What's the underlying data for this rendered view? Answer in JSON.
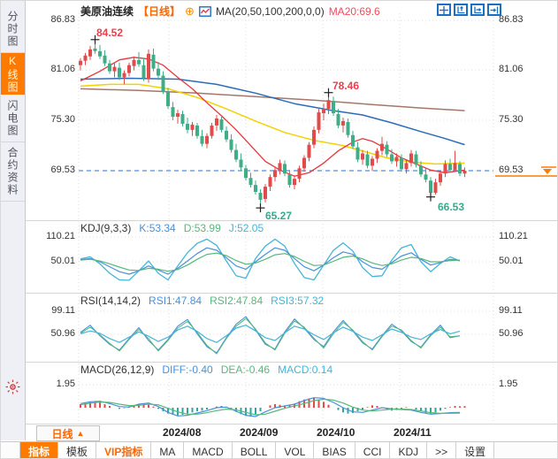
{
  "sidebar": {
    "tabs": [
      {
        "label": "分时图",
        "active": false
      },
      {
        "label": "K线图",
        "active": true
      },
      {
        "label": "闪电图",
        "active": false
      },
      {
        "label": "合约资料",
        "active": false
      }
    ]
  },
  "header": {
    "title": "美原油连续",
    "period": "【日线】",
    "ma_settings": "MA(20,50,100,200,0,0)",
    "ma20": "MA20:69.6"
  },
  "axis": {
    "main_ticks": [
      "86.83",
      "81.06",
      "75.30",
      "69.53"
    ],
    "last_price": "69.53"
  },
  "annotations": {
    "high1": "84.52",
    "low1": "65.27",
    "high2": "78.46",
    "low2": "66.53"
  },
  "kdj": {
    "name": "KDJ(9,3,3)",
    "k": "K:53.34",
    "d": "D:53.99",
    "j": "J:52.05",
    "tick_top": "110.21",
    "tick_mid": "50.01"
  },
  "rsi": {
    "name": "RSI(14,14,2)",
    "r1": "RSI1:47.84",
    "r2": "RSI2:47.84",
    "r3": "RSI3:57.32",
    "tick_top": "99.11",
    "tick_mid": "50.96"
  },
  "macd": {
    "name": "MACD(26,12,9)",
    "diff": "DIFF:-0.40",
    "dea": "DEA:-0.46",
    "macd": "MACD:0.14",
    "tick_top": "1.95"
  },
  "xaxis": {
    "period": "日线",
    "period_arrow": "▲",
    "dates": [
      "2024/08",
      "2024/09",
      "2024/10",
      "2024/11"
    ]
  },
  "tabbar": {
    "tabs": [
      {
        "label": "指标",
        "active": true
      },
      {
        "label": "模板"
      },
      {
        "label": "VIP指标",
        "vip": true
      },
      {
        "label": "MA"
      },
      {
        "label": "MACD"
      },
      {
        "label": "BOLL"
      },
      {
        "label": "VOL"
      },
      {
        "label": "BIAS"
      },
      {
        "label": "CCI"
      },
      {
        "label": "KDJ"
      },
      {
        "label": ">>"
      },
      {
        "label": "设置"
      }
    ]
  },
  "colors": {
    "accent_orange": "#ff7a00",
    "up_red": "#e24b4b",
    "down_green": "#3fae87",
    "ma20": "#e8353e",
    "ma50": "#f2d200",
    "ma100": "#2b6cb8",
    "ma200": "#a5766b",
    "k_blue": "#4a90d9",
    "d_green": "#56b87c",
    "j_cyan": "#45b5d8",
    "dashed_blue": "#4f8fd9",
    "hist_neg": "#2fa6a0",
    "grid": "#dcdcdc"
  },
  "chart_data": {
    "type": "candlestick",
    "symbol": "美原油连续",
    "period": "日线",
    "x_axis_months": [
      "2024/08",
      "2024/09",
      "2024/10",
      "2024/11"
    ],
    "price_ticks": [
      86.83,
      81.06,
      75.3,
      69.53
    ],
    "last_price": 69.53,
    "marked_points": {
      "high1": {
        "index": 3,
        "price": 84.52
      },
      "low1": {
        "index": 37,
        "price": 65.27
      },
      "high2": {
        "index": 51,
        "price": 78.46
      },
      "low2": {
        "index": 72,
        "price": 66.53
      }
    },
    "candles": [
      [
        81.6,
        82.4,
        81.0,
        82.1
      ],
      [
        82.1,
        83.0,
        81.6,
        82.7
      ],
      [
        82.6,
        83.8,
        82.2,
        83.4
      ],
      [
        83.5,
        84.52,
        82.9,
        83.2
      ],
      [
        83.2,
        83.9,
        82.3,
        82.6
      ],
      [
        82.7,
        83.3,
        81.5,
        81.8
      ],
      [
        81.8,
        82.2,
        80.6,
        80.9
      ],
      [
        80.9,
        81.8,
        80.2,
        81.4
      ],
      [
        81.3,
        81.9,
        79.9,
        80.2
      ],
      [
        80.2,
        81.0,
        79.4,
        80.7
      ],
      [
        80.7,
        81.9,
        80.3,
        81.6
      ],
      [
        81.5,
        82.6,
        81.0,
        82.2
      ],
      [
        82.2,
        83.1,
        81.4,
        81.7
      ],
      [
        81.6,
        82.4,
        79.8,
        80.1
      ],
      [
        80.0,
        83.4,
        79.6,
        82.9
      ],
      [
        82.8,
        83.5,
        80.9,
        81.2
      ],
      [
        81.2,
        82.0,
        79.9,
        80.4
      ],
      [
        80.4,
        80.9,
        78.3,
        78.6
      ],
      [
        78.5,
        79.0,
        76.6,
        76.9
      ],
      [
        76.8,
        77.4,
        75.3,
        75.7
      ],
      [
        75.7,
        76.5,
        74.9,
        76.1
      ],
      [
        76.0,
        76.4,
        74.6,
        74.9
      ],
      [
        74.9,
        75.6,
        73.8,
        74.2
      ],
      [
        74.2,
        75.1,
        73.5,
        74.8
      ],
      [
        74.7,
        75.0,
        73.2,
        73.5
      ],
      [
        73.5,
        74.2,
        72.3,
        72.6
      ],
      [
        72.6,
        73.8,
        72.1,
        73.5
      ],
      [
        73.5,
        75.0,
        73.2,
        74.7
      ],
      [
        74.7,
        75.9,
        74.1,
        75.5
      ],
      [
        75.4,
        75.8,
        73.9,
        74.2
      ],
      [
        74.1,
        74.6,
        72.8,
        73.1
      ],
      [
        73.1,
        73.7,
        71.6,
        71.9
      ],
      [
        71.9,
        72.6,
        70.5,
        70.8
      ],
      [
        70.8,
        71.5,
        69.5,
        69.9
      ],
      [
        69.8,
        70.2,
        68.4,
        68.7
      ],
      [
        68.7,
        69.3,
        67.6,
        67.9
      ],
      [
        67.9,
        68.4,
        66.8,
        67.1
      ],
      [
        67.0,
        67.4,
        65.27,
        66.2
      ],
      [
        66.3,
        68.0,
        65.9,
        67.7
      ],
      [
        67.7,
        69.1,
        67.2,
        68.8
      ],
      [
        68.8,
        70.0,
        68.3,
        69.6
      ],
      [
        69.6,
        70.8,
        69.1,
        70.4
      ],
      [
        70.3,
        70.7,
        68.9,
        69.2
      ],
      [
        69.1,
        69.6,
        67.6,
        67.9
      ],
      [
        67.9,
        69.0,
        67.4,
        68.6
      ],
      [
        68.6,
        70.1,
        68.2,
        69.8
      ],
      [
        69.8,
        71.3,
        69.4,
        71.0
      ],
      [
        71.0,
        72.8,
        70.6,
        72.5
      ],
      [
        72.5,
        74.6,
        72.1,
        74.2
      ],
      [
        74.2,
        76.6,
        73.8,
        76.2
      ],
      [
        76.1,
        77.2,
        75.3,
        76.6
      ],
      [
        76.6,
        78.46,
        76.0,
        77.6
      ],
      [
        77.5,
        78.0,
        75.8,
        76.1
      ],
      [
        76.0,
        76.6,
        74.4,
        74.7
      ],
      [
        74.7,
        75.6,
        73.9,
        75.2
      ],
      [
        75.1,
        75.5,
        73.3,
        73.6
      ],
      [
        73.6,
        74.1,
        72.0,
        72.3
      ],
      [
        72.2,
        72.8,
        70.5,
        70.8
      ],
      [
        70.8,
        71.9,
        70.2,
        71.5
      ],
      [
        71.4,
        71.8,
        69.8,
        70.1
      ],
      [
        70.1,
        71.2,
        69.5,
        70.9
      ],
      [
        70.9,
        72.1,
        70.4,
        71.8
      ],
      [
        71.8,
        73.4,
        71.3,
        72.6
      ],
      [
        72.5,
        72.9,
        71.1,
        71.4
      ],
      [
        71.4,
        72.0,
        70.3,
        70.6
      ],
      [
        70.6,
        71.5,
        70.0,
        71.1
      ],
      [
        71.0,
        71.4,
        69.4,
        69.7
      ],
      [
        69.7,
        70.8,
        69.2,
        70.4
      ],
      [
        70.4,
        71.9,
        70.0,
        71.5
      ],
      [
        71.4,
        71.8,
        69.9,
        70.2
      ],
      [
        70.1,
        70.6,
        68.8,
        69.1
      ],
      [
        69.1,
        69.8,
        68.2,
        68.5
      ],
      [
        68.4,
        68.8,
        66.53,
        67.0
      ],
      [
        67.0,
        68.6,
        66.8,
        68.2
      ],
      [
        68.2,
        69.5,
        67.8,
        69.2
      ],
      [
        69.2,
        70.7,
        68.8,
        70.3
      ],
      [
        70.3,
        70.9,
        69.3,
        69.6
      ],
      [
        69.6,
        71.8,
        69.4,
        70.4
      ],
      [
        70.3,
        70.6,
        68.9,
        69.2
      ],
      [
        69.2,
        69.9,
        68.8,
        69.53
      ]
    ],
    "ma_lines": {
      "ma20": [
        [
          0,
          79.8
        ],
        [
          4,
          80.9
        ],
        [
          8,
          82.2
        ],
        [
          11,
          82.5
        ],
        [
          14,
          82.3
        ],
        [
          17,
          81.6
        ],
        [
          20,
          80.2
        ],
        [
          23,
          78.9
        ],
        [
          26,
          77.3
        ],
        [
          29,
          75.8
        ],
        [
          32,
          74.2
        ],
        [
          35,
          72.4
        ],
        [
          38,
          70.6
        ],
        [
          41,
          69.6
        ],
        [
          44,
          68.9
        ],
        [
          47,
          69.3
        ],
        [
          50,
          70.4
        ],
        [
          53,
          71.8
        ],
        [
          56,
          72.8
        ],
        [
          58,
          73.2
        ],
        [
          60,
          72.9
        ],
        [
          63,
          72.0
        ],
        [
          66,
          71.0
        ],
        [
          69,
          70.3
        ],
        [
          72,
          69.6
        ],
        [
          75,
          69.3
        ],
        [
          79,
          69.6
        ]
      ],
      "ma50": [
        [
          0,
          79.2
        ],
        [
          6,
          79.4
        ],
        [
          12,
          79.4
        ],
        [
          18,
          78.9
        ],
        [
          24,
          77.9
        ],
        [
          30,
          76.6
        ],
        [
          36,
          75.2
        ],
        [
          42,
          73.9
        ],
        [
          48,
          73.0
        ],
        [
          54,
          72.4
        ],
        [
          58,
          71.8
        ],
        [
          63,
          71.0
        ],
        [
          68,
          70.5
        ],
        [
          73,
          70.3
        ],
        [
          79,
          70.4
        ]
      ],
      "ma100": [
        [
          0,
          80.0
        ],
        [
          10,
          80.1
        ],
        [
          20,
          80.0
        ],
        [
          28,
          79.4
        ],
        [
          36,
          78.4
        ],
        [
          44,
          77.2
        ],
        [
          52,
          76.4
        ],
        [
          58,
          75.9
        ],
        [
          64,
          75.0
        ],
        [
          70,
          74.0
        ],
        [
          75,
          73.2
        ],
        [
          79,
          72.5
        ]
      ],
      "ma200": [
        [
          0,
          78.9
        ],
        [
          12,
          78.7
        ],
        [
          24,
          78.4
        ],
        [
          36,
          78.0
        ],
        [
          48,
          77.6
        ],
        [
          60,
          77.1
        ],
        [
          70,
          76.7
        ],
        [
          79,
          76.4
        ]
      ]
    },
    "kdj": {
      "ticks": [
        110.21,
        50.01
      ],
      "step": 2,
      "k": [
        55,
        58,
        50,
        38,
        26,
        20,
        28,
        40,
        30,
        20,
        34,
        52,
        70,
        84,
        78,
        60,
        40,
        32,
        50,
        68,
        84,
        78,
        58,
        38,
        28,
        42,
        60,
        74,
        68,
        50,
        36,
        32,
        48,
        64,
        72,
        56,
        42,
        48,
        56,
        53.34
      ],
      "d": [
        54,
        56,
        52,
        45,
        37,
        30,
        29,
        34,
        32,
        27,
        31,
        42,
        56,
        68,
        71,
        65,
        53,
        44,
        47,
        56,
        67,
        70,
        63,
        51,
        41,
        42,
        51,
        61,
        64,
        57,
        47,
        41,
        45,
        54,
        61,
        58,
        50,
        50,
        53,
        53.99
      ],
      "j": [
        57,
        62,
        45,
        22,
        6,
        5,
        28,
        52,
        22,
        6,
        40,
        72,
        95,
        105,
        90,
        52,
        16,
        10,
        58,
        88,
        105,
        88,
        46,
        12,
        6,
        42,
        78,
        96,
        76,
        36,
        14,
        16,
        54,
        84,
        92,
        50,
        26,
        46,
        62,
        52.05
      ]
    },
    "rsi": {
      "ticks": [
        99.11,
        50.96
      ],
      "step": 2,
      "rsi1": [
        55,
        70,
        48,
        30,
        18,
        42,
        65,
        38,
        18,
        40,
        68,
        82,
        52,
        25,
        12,
        44,
        72,
        88,
        60,
        30,
        20,
        56,
        83,
        64,
        40,
        25,
        56,
        80,
        58,
        33,
        20,
        48,
        72,
        58,
        36,
        24,
        50,
        70,
        44,
        47.84
      ],
      "rsi2": [
        53,
        66,
        50,
        32,
        16,
        40,
        61,
        42,
        16,
        38,
        64,
        78,
        55,
        28,
        10,
        42,
        68,
        84,
        62,
        33,
        18,
        53,
        79,
        66,
        43,
        22,
        52,
        76,
        60,
        36,
        18,
        46,
        68,
        60,
        38,
        22,
        48,
        66,
        46,
        47.84
      ],
      "rsi3": [
        52,
        58,
        53,
        42,
        34,
        45,
        56,
        47,
        36,
        45,
        60,
        68,
        57,
        42,
        34,
        48,
        64,
        70,
        58,
        44,
        38,
        54,
        68,
        62,
        50,
        40,
        54,
        66,
        57,
        45,
        38,
        50,
        62,
        55,
        45,
        40,
        52,
        61,
        52,
        57.32
      ]
    },
    "macd": {
      "ticks": [
        1.95
      ],
      "step": 2,
      "diff": [
        0.35,
        0.5,
        0.55,
        0.35,
        0.1,
        0.05,
        0.3,
        0.4,
        0.1,
        -0.4,
        -0.7,
        -0.65,
        -0.45,
        -0.25,
        0.0,
        0.05,
        -0.3,
        -0.65,
        -0.75,
        -0.35,
        0.0,
        0.15,
        0.3,
        0.6,
        0.85,
        0.8,
        0.45,
        0.0,
        -0.35,
        -0.4,
        -0.2,
        0.0,
        -0.1,
        -0.15,
        -0.2,
        -0.4,
        -0.55,
        -0.5,
        -0.42,
        -0.4
      ],
      "dea": [
        0.25,
        0.38,
        0.48,
        0.45,
        0.3,
        0.18,
        0.2,
        0.3,
        0.25,
        -0.05,
        -0.35,
        -0.55,
        -0.55,
        -0.42,
        -0.25,
        -0.12,
        -0.18,
        -0.4,
        -0.6,
        -0.55,
        -0.3,
        -0.05,
        0.15,
        0.35,
        0.6,
        0.72,
        0.65,
        0.4,
        0.05,
        -0.2,
        -0.28,
        -0.2,
        -0.12,
        -0.12,
        -0.15,
        -0.28,
        -0.42,
        -0.48,
        -0.47,
        -0.46
      ],
      "hist": [
        0.3,
        0.4,
        0.5,
        0.55,
        0.45,
        0.3,
        0.15,
        0.0,
        -0.1,
        -0.05,
        0.1,
        0.2,
        0.3,
        0.35,
        0.25,
        0.1,
        -0.1,
        -0.3,
        -0.5,
        -0.6,
        -0.65,
        -0.6,
        -0.5,
        -0.4,
        -0.3,
        -0.25,
        -0.15,
        0.0,
        0.1,
        0.15,
        0.05,
        -0.15,
        -0.35,
        -0.55,
        -0.7,
        -0.75,
        -0.55,
        -0.3,
        0.0,
        0.2,
        0.3,
        0.25,
        0.15,
        0.2,
        0.35,
        0.55,
        0.7,
        0.8,
        0.85,
        0.7,
        0.5,
        0.25,
        0.0,
        -0.2,
        -0.4,
        -0.5,
        -0.45,
        -0.3,
        -0.15,
        0.05,
        0.2,
        0.15,
        0.0,
        -0.15,
        -0.25,
        -0.2,
        -0.1,
        0.05,
        0.0,
        -0.15,
        -0.3,
        -0.45,
        -0.5,
        -0.4,
        -0.25,
        -0.1,
        0.05,
        0.15,
        0.12,
        0.14
      ]
    }
  }
}
